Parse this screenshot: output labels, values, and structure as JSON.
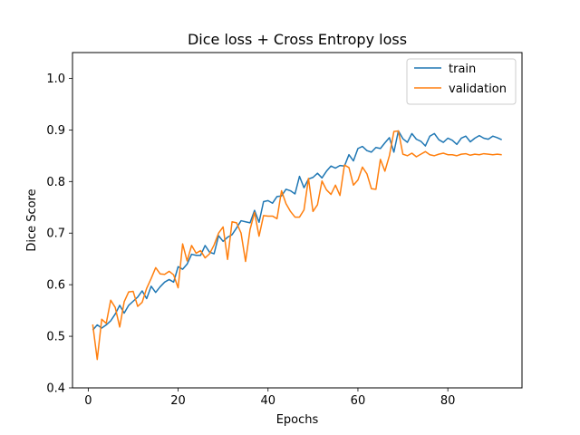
{
  "chart_data": {
    "type": "line",
    "title": "Dice loss + Cross Entropy loss",
    "xlabel": "Epochs",
    "ylabel": "Dice Score",
    "xlim": [
      -3.5,
      96.5
    ],
    "ylim": [
      0.4,
      1.05
    ],
    "xticks": [
      0,
      20,
      40,
      60,
      80
    ],
    "yticks": [
      0.4,
      0.5,
      0.6,
      0.7,
      0.8,
      0.9,
      1.0
    ],
    "xtick_labels": [
      "0",
      "20",
      "40",
      "60",
      "80"
    ],
    "ytick_labels": [
      "0.4",
      "0.5",
      "0.6",
      "0.7",
      "0.8",
      "0.9",
      "1.0"
    ],
    "grid": false,
    "legend": "top-right",
    "x": [
      1,
      2,
      3,
      4,
      5,
      6,
      7,
      8,
      9,
      10,
      11,
      12,
      13,
      14,
      15,
      16,
      17,
      18,
      19,
      20,
      21,
      22,
      23,
      24,
      25,
      26,
      27,
      28,
      29,
      30,
      31,
      32,
      33,
      34,
      35,
      36,
      37,
      38,
      39,
      40,
      41,
      42,
      43,
      44,
      45,
      46,
      47,
      48,
      49,
      50,
      51,
      52,
      53,
      54,
      55,
      56,
      57,
      58,
      59,
      60,
      61,
      62,
      63,
      64,
      65,
      66,
      67,
      68,
      69,
      70,
      71,
      72,
      73,
      74,
      75,
      76,
      77,
      78,
      79,
      80,
      81,
      82,
      83,
      84,
      85,
      86,
      87,
      88,
      89,
      90,
      91,
      92
    ],
    "series": [
      {
        "name": "train",
        "color": "#1f77b4",
        "values": [
          0.512,
          0.522,
          0.516,
          0.522,
          0.53,
          0.543,
          0.56,
          0.545,
          0.56,
          0.568,
          0.576,
          0.588,
          0.573,
          0.597,
          0.585,
          0.596,
          0.605,
          0.61,
          0.605,
          0.635,
          0.63,
          0.64,
          0.659,
          0.657,
          0.657,
          0.676,
          0.663,
          0.66,
          0.695,
          0.684,
          0.692,
          0.697,
          0.71,
          0.724,
          0.722,
          0.72,
          0.744,
          0.721,
          0.761,
          0.763,
          0.758,
          0.771,
          0.772,
          0.785,
          0.782,
          0.776,
          0.81,
          0.788,
          0.805,
          0.808,
          0.816,
          0.807,
          0.82,
          0.83,
          0.826,
          0.831,
          0.83,
          0.852,
          0.84,
          0.864,
          0.868,
          0.86,
          0.857,
          0.866,
          0.864,
          0.875,
          0.885,
          0.857,
          0.898,
          0.883,
          0.876,
          0.893,
          0.882,
          0.878,
          0.869,
          0.888,
          0.893,
          0.881,
          0.876,
          0.884,
          0.88,
          0.872,
          0.884,
          0.888,
          0.877,
          0.884,
          0.889,
          0.884,
          0.882,
          0.888,
          0.885,
          0.881
        ]
      },
      {
        "name": "validation",
        "color": "#ff7f0e",
        "values": [
          0.523,
          0.455,
          0.533,
          0.525,
          0.57,
          0.556,
          0.518,
          0.567,
          0.586,
          0.587,
          0.558,
          0.566,
          0.593,
          0.612,
          0.633,
          0.621,
          0.62,
          0.626,
          0.619,
          0.594,
          0.679,
          0.646,
          0.676,
          0.661,
          0.666,
          0.652,
          0.66,
          0.677,
          0.7,
          0.712,
          0.649,
          0.722,
          0.72,
          0.7,
          0.645,
          0.707,
          0.74,
          0.694,
          0.734,
          0.733,
          0.733,
          0.728,
          0.782,
          0.757,
          0.742,
          0.731,
          0.731,
          0.745,
          0.806,
          0.742,
          0.755,
          0.801,
          0.784,
          0.775,
          0.793,
          0.773,
          0.832,
          0.827,
          0.793,
          0.803,
          0.828,
          0.815,
          0.786,
          0.785,
          0.843,
          0.82,
          0.85,
          0.897,
          0.898,
          0.853,
          0.85,
          0.855,
          0.848,
          0.853,
          0.858,
          0.852,
          0.85,
          0.853,
          0.855,
          0.852,
          0.852,
          0.85,
          0.853,
          0.854,
          0.851,
          0.853,
          0.852,
          0.854,
          0.853,
          0.852,
          0.853,
          0.852
        ]
      }
    ]
  }
}
